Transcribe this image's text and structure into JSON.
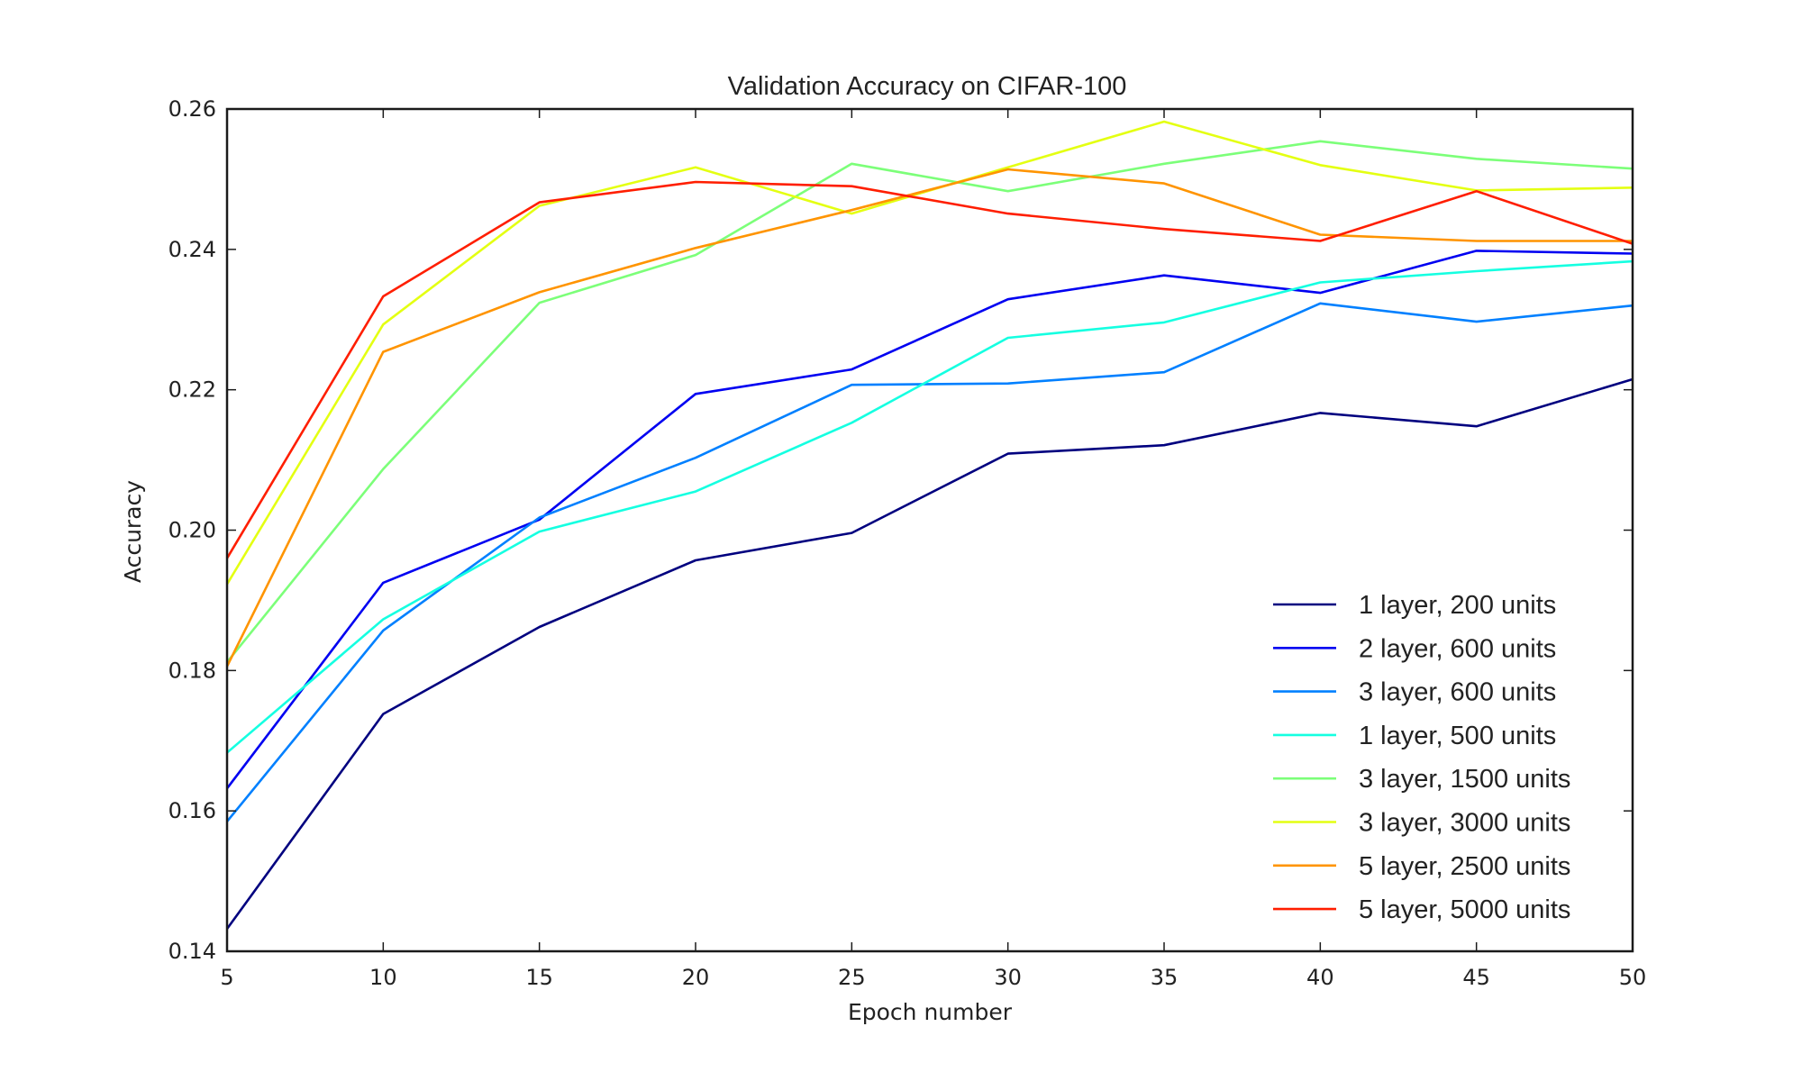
{
  "chart_data": {
    "type": "line",
    "title": "Validation Accuracy on CIFAR-100",
    "xlabel": "Epoch number",
    "ylabel": "Accuracy",
    "xlim": [
      5,
      50
    ],
    "ylim": [
      0.14,
      0.26
    ],
    "x": [
      5,
      10,
      15,
      20,
      25,
      30,
      35,
      40,
      45,
      50
    ],
    "xticks": [
      "5",
      "10",
      "15",
      "20",
      "25",
      "30",
      "35",
      "40",
      "45",
      "50"
    ],
    "yticks": [
      "0.14",
      "0.16",
      "0.18",
      "0.20",
      "0.22",
      "0.24",
      "0.26"
    ],
    "grid": false,
    "legend_position": "lower-right",
    "series": [
      {
        "name": "1 layer, 200 units",
        "color": "#00007f",
        "values": [
          0.1432,
          0.1738,
          0.1862,
          0.1957,
          0.1996,
          0.2109,
          0.2121,
          0.2167,
          0.2148,
          0.2215
        ]
      },
      {
        "name": "2 layer, 600 units",
        "color": "#0000f1",
        "values": [
          0.1632,
          0.1925,
          0.2015,
          0.2194,
          0.2229,
          0.2329,
          0.2363,
          0.2338,
          0.2398,
          0.2394
        ]
      },
      {
        "name": "3 layer, 600 units",
        "color": "#0080ff",
        "values": [
          0.1585,
          0.1857,
          0.2018,
          0.2103,
          0.2207,
          0.2209,
          0.2225,
          0.2323,
          0.2297,
          0.232
        ]
      },
      {
        "name": "1 layer, 500 units",
        "color": "#15ffe1",
        "values": [
          0.1683,
          0.1873,
          0.1998,
          0.2055,
          0.2153,
          0.2274,
          0.2296,
          0.2353,
          0.2369,
          0.2383
        ]
      },
      {
        "name": "3 layer, 1500 units",
        "color": "#7cff79",
        "values": [
          0.1812,
          0.2087,
          0.2324,
          0.2392,
          0.2522,
          0.2483,
          0.2522,
          0.2554,
          0.2529,
          0.2515
        ]
      },
      {
        "name": "3 layer, 3000 units",
        "color": "#e4ff12",
        "values": [
          0.1923,
          0.2293,
          0.2462,
          0.2517,
          0.2451,
          0.2517,
          0.2582,
          0.252,
          0.2484,
          0.2488
        ]
      },
      {
        "name": "5 layer, 2500 units",
        "color": "#ff9400",
        "values": [
          0.1806,
          0.2254,
          0.2339,
          0.2402,
          0.2456,
          0.2514,
          0.2494,
          0.2421,
          0.2412,
          0.2412
        ]
      },
      {
        "name": "5 layer, 5000 units",
        "color": "#ff1e00",
        "values": [
          0.196,
          0.2333,
          0.2467,
          0.2496,
          0.249,
          0.2451,
          0.2429,
          0.2412,
          0.2483,
          0.2408
        ]
      }
    ]
  }
}
